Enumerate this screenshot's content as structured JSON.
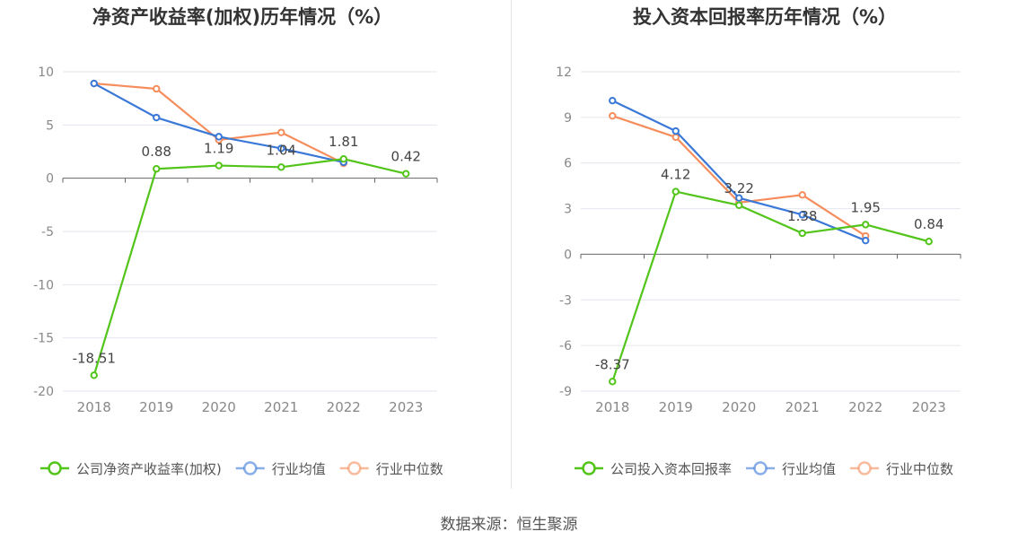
{
  "source": "数据来源：恒生聚源",
  "chart_data": [
    {
      "type": "line",
      "title": "净资产收益率(加权)历年情况（%）",
      "categories": [
        "2018",
        "2019",
        "2020",
        "2021",
        "2022",
        "2023"
      ],
      "ylim": [
        -20,
        10
      ],
      "yticks": [
        10,
        5,
        0,
        -5,
        -10,
        -15,
        -20
      ],
      "grid": true,
      "legend_position": "bottom",
      "series": [
        {
          "name": "公司净资产收益率(加权)",
          "color": "#52c41a",
          "values": [
            -18.51,
            0.88,
            1.19,
            1.04,
            1.81,
            0.42
          ],
          "labels": [
            "-18.51",
            "0.88",
            "1.19",
            "1.04",
            "1.81",
            "0.42"
          ]
        },
        {
          "name": "行业均值",
          "color": "#3a78d8",
          "values": [
            8.9,
            5.7,
            3.9,
            2.8,
            1.5,
            null
          ]
        },
        {
          "name": "行业中位数",
          "color": "#f58d5c",
          "values": [
            8.9,
            8.4,
            3.6,
            4.3,
            1.4,
            null
          ]
        }
      ]
    },
    {
      "type": "line",
      "title": "投入资本回报率历年情况（%）",
      "categories": [
        "2018",
        "2019",
        "2020",
        "2021",
        "2022",
        "2023"
      ],
      "ylim": [
        -9,
        12
      ],
      "yticks": [
        12,
        9,
        6,
        3,
        0,
        -3,
        -6,
        -9
      ],
      "grid": true,
      "legend_position": "bottom",
      "series": [
        {
          "name": "公司投入资本回报率",
          "color": "#52c41a",
          "values": [
            -8.37,
            4.12,
            3.22,
            1.38,
            1.95,
            0.84
          ],
          "labels": [
            "-8.37",
            "4.12",
            "3.22",
            "1.38",
            "1.95",
            "0.84"
          ]
        },
        {
          "name": "行业均值",
          "color": "#3a78d8",
          "values": [
            10.1,
            8.1,
            3.7,
            2.6,
            0.9,
            null
          ]
        },
        {
          "name": "行业中位数",
          "color": "#f58d5c",
          "values": [
            9.1,
            7.7,
            3.4,
            3.9,
            1.2,
            null
          ]
        }
      ]
    }
  ]
}
